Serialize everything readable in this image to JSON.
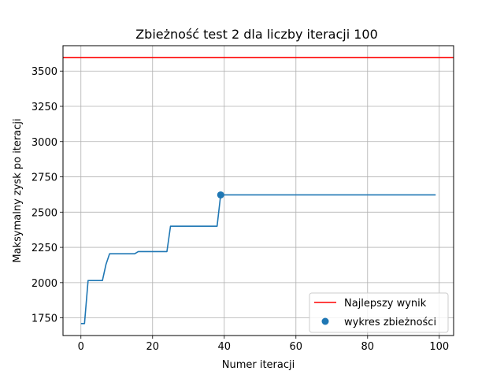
{
  "chart_data": {
    "type": "line",
    "title": "Zbieżność test 2 dla liczby iteracji 100",
    "xlabel": "Numer iteracji",
    "ylabel": "Maksymalny zysk po iteracji",
    "xlim": [
      -5,
      104
    ],
    "ylim": [
      1625,
      3680
    ],
    "x_ticks": [
      0,
      20,
      40,
      60,
      80,
      100
    ],
    "y_ticks": [
      1750,
      2000,
      2250,
      2500,
      2750,
      3000,
      3250,
      3500
    ],
    "grid": true,
    "legend_position": "lower-right",
    "series": [
      {
        "name": "wykres zbieżności",
        "kind": "line",
        "color": "#1f77b4",
        "points": [
          [
            0,
            1710
          ],
          [
            1,
            1710
          ],
          [
            2,
            2015
          ],
          [
            6,
            2015
          ],
          [
            7,
            2130
          ],
          [
            8,
            2205
          ],
          [
            15,
            2205
          ],
          [
            16,
            2220
          ],
          [
            24,
            2220
          ],
          [
            25,
            2400
          ],
          [
            38,
            2400
          ],
          [
            39,
            2622
          ],
          [
            99,
            2622
          ]
        ]
      },
      {
        "name": "wykres zbieżności",
        "kind": "scatter",
        "color": "#1f77b4",
        "points": [
          [
            39,
            2622
          ]
        ]
      },
      {
        "name": "Najlepszy wynik",
        "kind": "hline",
        "color": "#ff0000",
        "y": 3595
      }
    ],
    "legend": [
      {
        "label": "Najlepszy wynik",
        "marker": "line",
        "color": "#ff0000"
      },
      {
        "label": "wykres zbieżności",
        "marker": "dot",
        "color": "#1f77b4"
      }
    ]
  }
}
